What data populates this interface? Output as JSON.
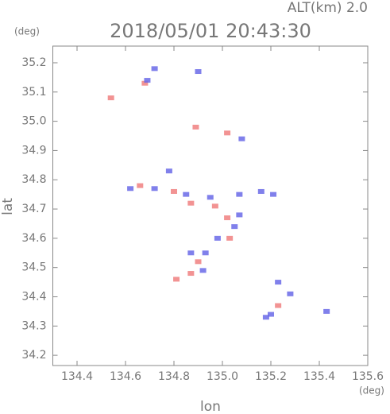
{
  "chart_data": {
    "type": "scatter",
    "altitude_label": "ALT(km) 2.0",
    "title": "2018/05/01 20:43:30",
    "y_unit": "(deg)",
    "x_unit": "(deg)",
    "ylabel": "lat",
    "xlabel": "lon",
    "xlim": [
      134.3,
      135.6
    ],
    "ylim": [
      34.165,
      35.257
    ],
    "xticks": [
      134.4,
      134.6,
      134.8,
      {
        "value": 135,
        "label": "135.0"
      },
      135.2,
      135.4,
      135.6
    ],
    "yticks": [
      34.2,
      34.3,
      34.4,
      34.5,
      34.6,
      34.7,
      34.8,
      34.9,
      {
        "value": 35,
        "label": "35.0"
      },
      35.1,
      35.2
    ],
    "series": [
      {
        "color": "#f08080",
        "x": [
          134.68,
          134.54,
          134.89,
          135.02,
          134.8,
          134.66,
          134.87,
          134.97,
          135.02,
          135.03,
          134.9,
          134.87,
          134.81,
          135.23
        ],
        "values": [
          35.13,
          35.08,
          34.98,
          34.96,
          34.76,
          34.78,
          34.72,
          34.71,
          34.67,
          34.6,
          34.52,
          34.48,
          34.46,
          34.37
        ]
      },
      {
        "color": "#6a6ae8",
        "x": [
          134.69,
          134.72,
          134.9,
          135.08,
          134.78,
          134.62,
          134.72,
          134.85,
          134.95,
          135.07,
          135.16,
          135.21,
          135.05,
          135.07,
          134.98,
          134.87,
          134.93,
          134.92,
          135.23,
          135.28,
          135.2,
          135.18,
          135.43
        ],
        "values": [
          35.14,
          35.18,
          35.17,
          34.94,
          34.83,
          34.77,
          34.77,
          34.75,
          34.74,
          34.75,
          34.76,
          34.75,
          34.64,
          34.68,
          34.6,
          34.55,
          34.55,
          34.49,
          34.45,
          34.41,
          34.34,
          34.33,
          34.35
        ]
      }
    ]
  }
}
